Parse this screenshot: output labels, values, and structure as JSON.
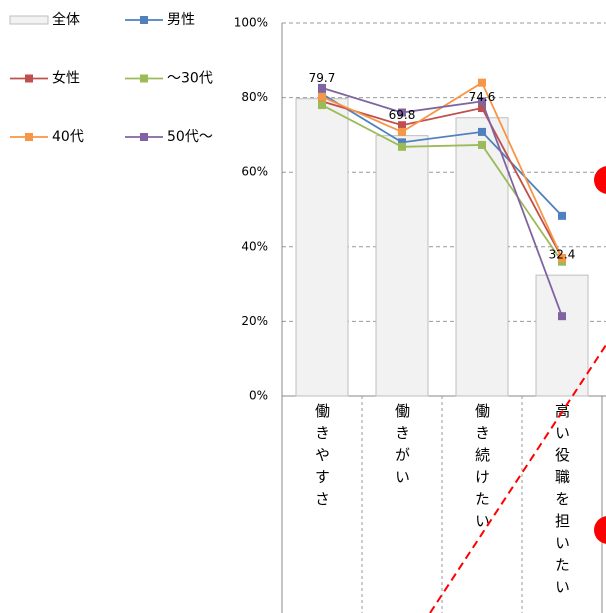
{
  "chart_data": {
    "type": "bar",
    "categories": [
      "働きやすさ",
      "働きがい",
      "働き続けたい",
      "高い役職を担いたい"
    ],
    "series": [
      {
        "name": "全体",
        "type": "bar",
        "color": "#f2f2f2",
        "values": [
          79.7,
          69.8,
          74.6,
          32.4
        ]
      },
      {
        "name": "男性",
        "type": "line",
        "color": "#4f81bd",
        "values": [
          81,
          68,
          70.8,
          48.3
        ]
      },
      {
        "name": "女性",
        "type": "line",
        "color": "#c0504d",
        "values": [
          79,
          72.6,
          77.2,
          37
        ]
      },
      {
        "name": "～30代",
        "type": "line",
        "color": "#9bbb59",
        "values": [
          78,
          66.8,
          67.3,
          36
        ]
      },
      {
        "name": "40代",
        "type": "line",
        "color": "#f79646",
        "values": [
          80.2,
          70.8,
          84,
          37
        ]
      },
      {
        "name": "50代～",
        "type": "line",
        "color": "#8064a2",
        "values": [
          82.6,
          76,
          79,
          21.4
        ]
      }
    ],
    "ylim": [
      0,
      100
    ],
    "yticks": [
      {
        "value": 0,
        "label": "0%"
      },
      {
        "value": 20,
        "label": "20%"
      },
      {
        "value": 40,
        "label": "40%"
      },
      {
        "value": 60,
        "label": "60%"
      },
      {
        "value": 80,
        "label": "80%"
      },
      {
        "value": 100,
        "label": "100%"
      }
    ],
    "grid": true,
    "legend": "top-left"
  }
}
